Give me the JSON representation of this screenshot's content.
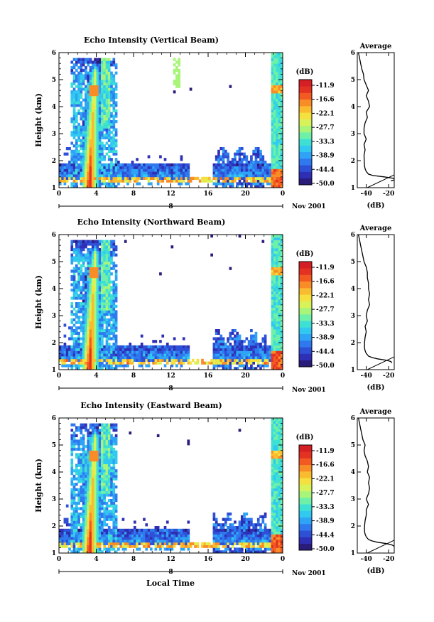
{
  "figure": {
    "xlabel": "Local Time",
    "colorbar_unit": "(dB)",
    "colorbar_ticks": [
      "-11.9",
      "-16.6",
      "-22.1",
      "-27.7",
      "-33.3",
      "-38.9",
      "-44.4",
      "-50.0"
    ],
    "colors": {
      "scale": [
        "#2a1c7a",
        "#2f2fb5",
        "#2e50d6",
        "#2f78ee",
        "#2fa3f5",
        "#31c9ef",
        "#3fe0d4",
        "#6ff0a8",
        "#a9f57a",
        "#d8f25a",
        "#f4e13f",
        "#f9bb2f",
        "#f88c26",
        "#f25a22",
        "#e43222",
        "#d51f25"
      ]
    }
  },
  "chart_data": [
    {
      "type": "heatmap",
      "title": "Echo Intensity (Vertical Beam)",
      "ylabel": "Height (km)",
      "xlim": [
        0,
        24
      ],
      "ylim": [
        1,
        6
      ],
      "x_ticks": [
        "0",
        "4",
        "8",
        "12",
        "16",
        "20",
        "0"
      ],
      "y_ticks": [
        "1",
        "2",
        "3",
        "4",
        "5",
        "6"
      ],
      "day_label": "8",
      "date_label": "Nov 2001",
      "color_unit": "(dB)",
      "zlim": [
        -50.0,
        -11.9
      ],
      "average": {
        "title": "Average",
        "xlabel": "(dB)",
        "x_ticks": [
          "-40",
          "-20"
        ],
        "xlim": [
          -48,
          -15
        ],
        "height": [
          1.25,
          1.3,
          1.35,
          1.4,
          1.45,
          1.5,
          1.6,
          1.7,
          1.8,
          2.0,
          2.2,
          2.4,
          2.6,
          2.8,
          3.0,
          3.2,
          3.4,
          3.6,
          3.8,
          4.0,
          4.2,
          4.4,
          4.6,
          4.8,
          5.0,
          5.2,
          5.4,
          5.6,
          5.8,
          6.0
        ],
        "value": [
          -18,
          -14,
          -16,
          -24,
          -34,
          -38,
          -40,
          -41,
          -41.5,
          -41.8,
          -42,
          -41,
          -42,
          -40,
          -42,
          -42,
          -41,
          -39,
          -40,
          -37,
          -38,
          -40,
          -38,
          -40,
          -42,
          -42.5,
          -44,
          -45,
          -46,
          -47
        ]
      }
    },
    {
      "type": "heatmap",
      "title": "Echo Intensity (Northward Beam)",
      "ylabel": "Height (km)",
      "xlim": [
        0,
        24
      ],
      "ylim": [
        1,
        6
      ],
      "x_ticks": [
        "0",
        "4",
        "8",
        "12",
        "16",
        "20",
        "0"
      ],
      "y_ticks": [
        "1",
        "2",
        "3",
        "4",
        "5",
        "6"
      ],
      "day_label": "8",
      "date_label": "Nov 2001",
      "color_unit": "(dB)",
      "zlim": [
        -50.0,
        -11.9
      ],
      "average": {
        "title": "Average",
        "xlabel": "(dB)",
        "x_ticks": [
          "-40",
          "-20"
        ],
        "xlim": [
          -48,
          -15
        ],
        "height": [
          1.25,
          1.3,
          1.35,
          1.4,
          1.45,
          1.5,
          1.6,
          1.7,
          1.8,
          2.0,
          2.2,
          2.4,
          2.6,
          2.8,
          3.0,
          3.2,
          3.4,
          3.6,
          3.8,
          4.0,
          4.2,
          4.4,
          4.6,
          4.8,
          5.0,
          5.2,
          5.4,
          5.6,
          5.8,
          6.0
        ],
        "value": [
          -17,
          -18,
          -22,
          -30,
          -35,
          -38,
          -40,
          -41,
          -41.5,
          -41.5,
          -41,
          -40,
          -41,
          -39,
          -40,
          -39,
          -37,
          -38,
          -37,
          -38,
          -38,
          -39,
          -39,
          -40,
          -42,
          -43,
          -44,
          -45,
          -46,
          -47
        ]
      }
    },
    {
      "type": "heatmap",
      "title": "Echo Intensity (Eastward Beam)",
      "ylabel": "Height (km)",
      "xlim": [
        0,
        24
      ],
      "ylim": [
        1,
        6
      ],
      "x_ticks": [
        "0",
        "4",
        "8",
        "12",
        "16",
        "20",
        "0"
      ],
      "y_ticks": [
        "1",
        "2",
        "3",
        "4",
        "5",
        "6"
      ],
      "day_label": "8",
      "date_label": "Nov 2001",
      "color_unit": "(dB)",
      "zlim": [
        -50.0,
        -11.9
      ],
      "average": {
        "title": "Average",
        "xlabel": "(dB)",
        "x_ticks": [
          "-40",
          "-20"
        ],
        "xlim": [
          -48,
          -15
        ],
        "height": [
          1.25,
          1.3,
          1.35,
          1.4,
          1.45,
          1.5,
          1.6,
          1.7,
          1.8,
          2.0,
          2.2,
          2.4,
          2.6,
          2.8,
          3.0,
          3.2,
          3.4,
          3.6,
          3.8,
          4.0,
          4.2,
          4.4,
          4.6,
          4.8,
          5.0,
          5.2,
          5.4,
          5.6,
          5.8,
          6.0
        ],
        "value": [
          -15,
          -17,
          -22,
          -30,
          -35,
          -38,
          -40,
          -41,
          -41.5,
          -41.5,
          -41,
          -40,
          -40,
          -38,
          -40,
          -38,
          -37,
          -38,
          -37,
          -39,
          -38,
          -39,
          -41,
          -42,
          -41,
          -43,
          -44,
          -45,
          -46,
          -47
        ]
      }
    }
  ]
}
